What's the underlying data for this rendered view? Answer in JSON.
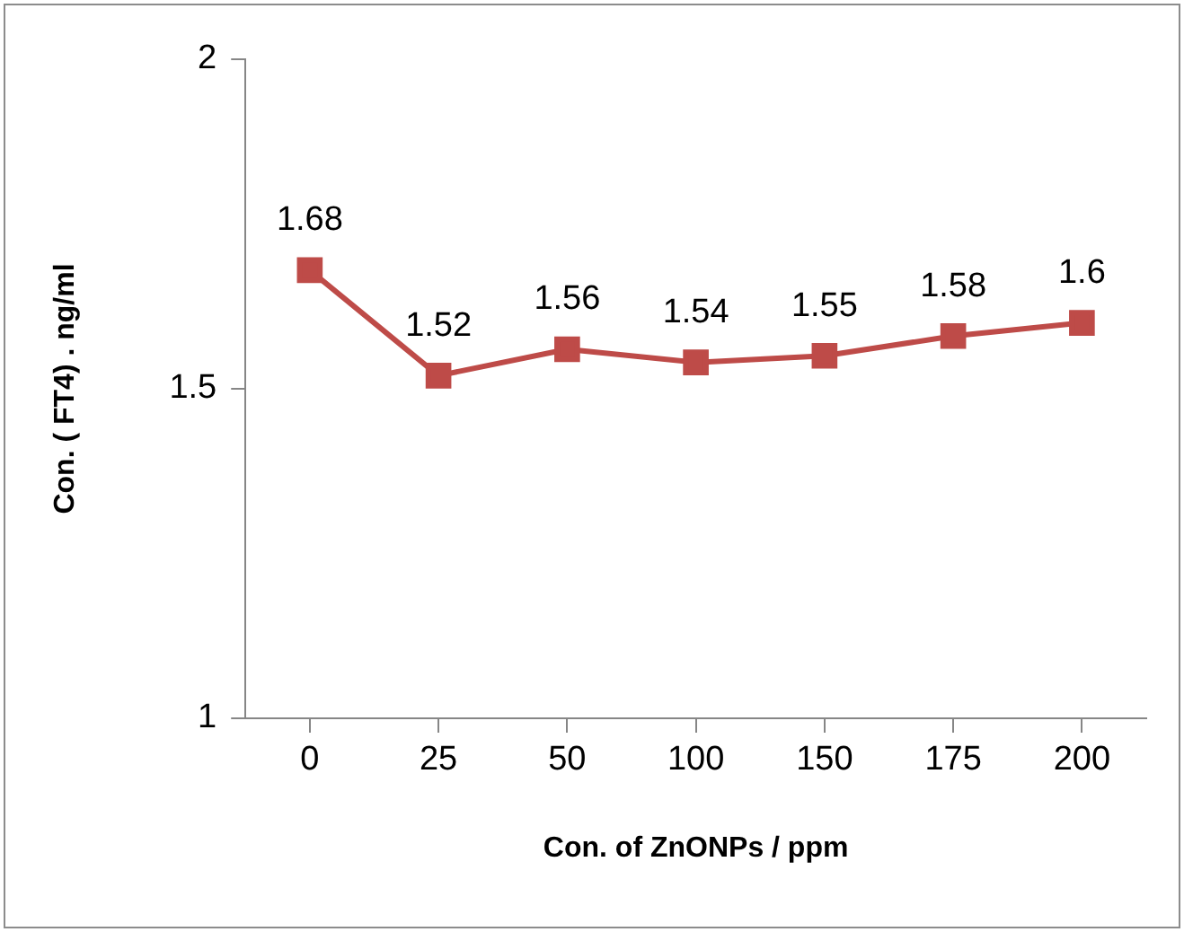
{
  "chart_data": {
    "type": "line",
    "xlabel": "Con. of ZnONPs / ppm",
    "ylabel": "Con. ( FT4) . ng/ml",
    "categories": [
      "0",
      "25",
      "50",
      "100",
      "150",
      "175",
      "200"
    ],
    "series": [
      {
        "color": "#be4b48",
        "values": [
          1.68,
          1.52,
          1.56,
          1.54,
          1.55,
          1.58,
          1.6
        ]
      }
    ],
    "ylim": [
      1,
      2
    ],
    "yticks": [
      1,
      1.5,
      2
    ],
    "grid": false,
    "legend": false,
    "marker": "square",
    "line_style": "solid",
    "data_labels": true
  }
}
